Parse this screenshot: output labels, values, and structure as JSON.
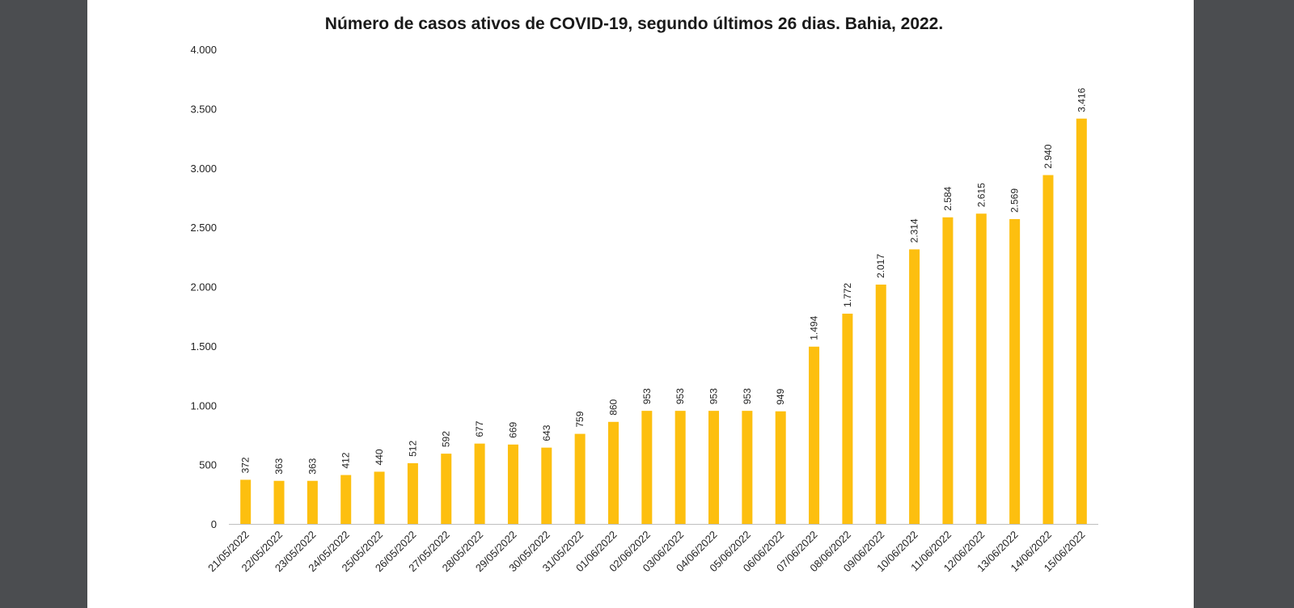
{
  "chart_data": {
    "type": "bar",
    "title": "Número de casos ativos de COVID-19, segundo últimos 26 dias.  Bahia, 2022.",
    "xlabel": "",
    "ylabel": "",
    "ylim": [
      0,
      4000
    ],
    "yticks": [
      0,
      500,
      1000,
      1500,
      2000,
      2500,
      3000,
      3500,
      4000
    ],
    "ytick_labels": [
      "0",
      "500",
      "1.000",
      "1.500",
      "2.000",
      "2.500",
      "3.000",
      "3.500",
      "4.000"
    ],
    "grid": false,
    "legend": "none",
    "bar_color": "#fdbf0f",
    "categories": [
      "21/05/2022",
      "22/05/2022",
      "23/05/2022",
      "24/05/2022",
      "25/05/2022",
      "26/05/2022",
      "27/05/2022",
      "28/05/2022",
      "29/05/2022",
      "30/05/2022",
      "31/05/2022",
      "01/06/2022",
      "02/06/2022",
      "03/06/2022",
      "04/06/2022",
      "05/06/2022",
      "06/06/2022",
      "07/06/2022",
      "08/06/2022",
      "09/06/2022",
      "10/06/2022",
      "11/06/2022",
      "12/06/2022",
      "13/06/2022",
      "14/06/2022",
      "15/06/2022"
    ],
    "values": [
      372,
      363,
      363,
      412,
      440,
      512,
      592,
      677,
      669,
      643,
      759,
      860,
      953,
      953,
      953,
      953,
      949,
      1494,
      1772,
      2017,
      2314,
      2584,
      2615,
      2569,
      2940,
      3416
    ],
    "value_labels": [
      "372",
      "363",
      "363",
      "412",
      "440",
      "512",
      "592",
      "677",
      "669",
      "643",
      "759",
      "860",
      "953",
      "953",
      "953",
      "953",
      "949",
      "1.494",
      "1.772",
      "2.017",
      "2.314",
      "2.584",
      "2.615",
      "2.569",
      "2.940",
      "3.416"
    ]
  }
}
